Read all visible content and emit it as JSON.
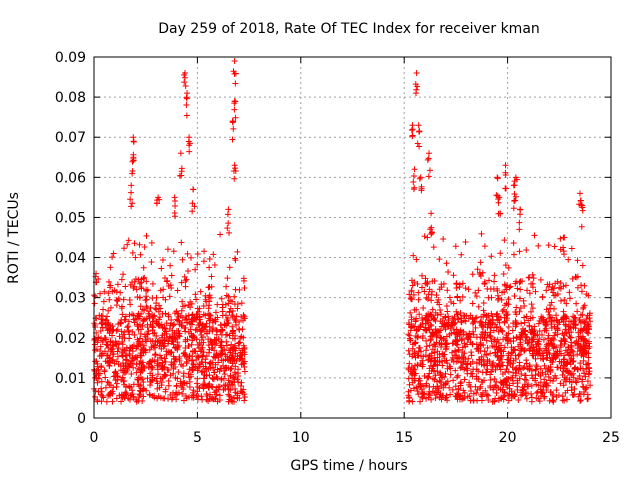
{
  "chart_data": {
    "type": "scatter",
    "title": "Day 259 of 2018, Rate Of TEC Index for receiver kman",
    "xlabel": "GPS time / hours",
    "ylabel": "ROTI / TECUs",
    "xlim": [
      0,
      25
    ],
    "ylim": [
      0,
      0.09
    ],
    "x_ticks": [
      0,
      5,
      10,
      15,
      20,
      25
    ],
    "x_tick_labels": [
      "0",
      "5",
      "10",
      "15",
      "20",
      "25"
    ],
    "y_ticks": [
      0,
      0.01,
      0.02,
      0.03,
      0.04,
      0.05,
      0.06,
      0.07,
      0.08,
      0.09
    ],
    "y_tick_labels": [
      "0",
      "0.01",
      "0.02",
      "0.03",
      "0.04",
      "0.05",
      "0.06",
      "0.07",
      "0.08",
      "0.09"
    ],
    "grid": true,
    "marker": "+",
    "color": "#ff0000",
    "series": [
      {
        "name": "ROTI",
        "segments": [
          {
            "x_start": 0.0,
            "x_end": 7.3
          },
          {
            "x_start": 15.2,
            "x_end": 24.0
          }
        ],
        "notable_points": [
          {
            "x": 0.1,
            "y": 0.036
          },
          {
            "x": 1.9,
            "y": 0.07
          },
          {
            "x": 1.9,
            "y": 0.065
          },
          {
            "x": 1.8,
            "y": 0.058
          },
          {
            "x": 3.1,
            "y": 0.055
          },
          {
            "x": 3.9,
            "y": 0.055
          },
          {
            "x": 4.2,
            "y": 0.066
          },
          {
            "x": 4.4,
            "y": 0.086
          },
          {
            "x": 4.5,
            "y": 0.081
          },
          {
            "x": 4.6,
            "y": 0.07
          },
          {
            "x": 4.8,
            "y": 0.057
          },
          {
            "x": 6.5,
            "y": 0.052
          },
          {
            "x": 6.7,
            "y": 0.074
          },
          {
            "x": 6.8,
            "y": 0.079
          },
          {
            "x": 6.8,
            "y": 0.063
          },
          {
            "x": 6.8,
            "y": 0.089
          },
          {
            "x": 15.4,
            "y": 0.073
          },
          {
            "x": 15.5,
            "y": 0.062
          },
          {
            "x": 15.6,
            "y": 0.086
          },
          {
            "x": 15.7,
            "y": 0.073
          },
          {
            "x": 15.8,
            "y": 0.06
          },
          {
            "x": 16.2,
            "y": 0.066
          },
          {
            "x": 16.3,
            "y": 0.051
          },
          {
            "x": 19.5,
            "y": 0.06
          },
          {
            "x": 19.6,
            "y": 0.055
          },
          {
            "x": 19.9,
            "y": 0.063
          },
          {
            "x": 20.3,
            "y": 0.058
          },
          {
            "x": 20.4,
            "y": 0.06
          },
          {
            "x": 20.6,
            "y": 0.052
          },
          {
            "x": 22.7,
            "y": 0.045
          },
          {
            "x": 23.5,
            "y": 0.056
          },
          {
            "x": 23.6,
            "y": 0.053
          }
        ]
      }
    ]
  }
}
